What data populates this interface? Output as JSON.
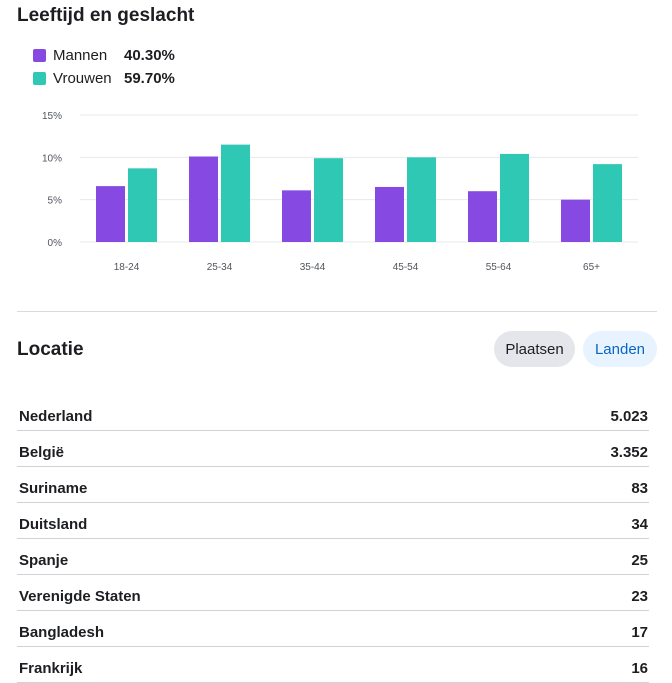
{
  "age_gender": {
    "title": "Leeftijd en geslacht",
    "legend": [
      {
        "name": "Mannen",
        "value": "40.30%",
        "color": "#8649e1"
      },
      {
        "name": "Vrouwen",
        "value": "59.70%",
        "color": "#2fc8b4"
      }
    ]
  },
  "chart_data": {
    "type": "bar",
    "categories": [
      "18-24",
      "25-34",
      "35-44",
      "45-54",
      "55-64",
      "65+"
    ],
    "series": [
      {
        "name": "Mannen",
        "values": [
          6.6,
          10.1,
          6.1,
          6.5,
          6.0,
          5.0
        ],
        "color": "#8649e1"
      },
      {
        "name": "Vrouwen",
        "values": [
          8.7,
          11.5,
          9.9,
          10.0,
          10.4,
          9.2
        ],
        "color": "#2fc8b4"
      }
    ],
    "ylim": [
      0,
      15
    ],
    "yticks": [
      0,
      5,
      10,
      15
    ],
    "ytick_labels": [
      "0%",
      "5%",
      "10%",
      "15%"
    ],
    "grid": true
  },
  "location": {
    "title": "Locatie",
    "buttons": {
      "plaatsen": "Plaatsen",
      "landen": "Landen"
    },
    "rows": [
      {
        "name": "Nederland",
        "value": "5.023"
      },
      {
        "name": "België",
        "value": "3.352"
      },
      {
        "name": "Suriname",
        "value": "83"
      },
      {
        "name": "Duitsland",
        "value": "34"
      },
      {
        "name": "Spanje",
        "value": "25"
      },
      {
        "name": "Verenigde Staten",
        "value": "23"
      },
      {
        "name": "Bangladesh",
        "value": "17"
      },
      {
        "name": "Frankrijk",
        "value": "16"
      }
    ]
  }
}
